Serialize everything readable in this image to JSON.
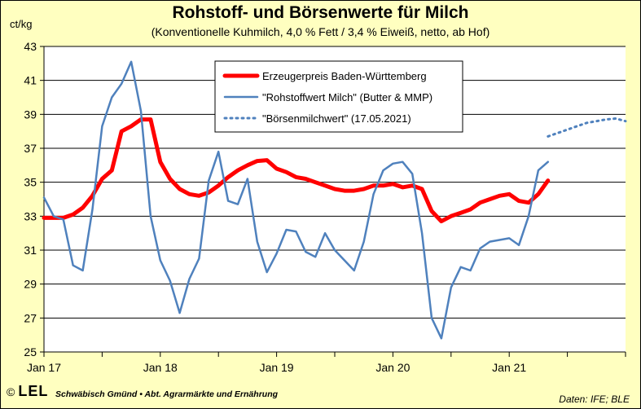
{
  "chart_data": {
    "type": "line",
    "title": "Rohstoff- und Börsenwerte für Milch",
    "subtitle": "(Konventionelle Kuhmilch, 4,0 % Fett / 3,4 % Eiweiß, netto, ab Hof)",
    "ylabel": "ct/kg",
    "ylim": [
      25,
      43
    ],
    "yticks": [
      "25",
      "27",
      "29",
      "31",
      "33",
      "35",
      "37",
      "39",
      "41",
      "43"
    ],
    "xlim": [
      0,
      60
    ],
    "xticks": [
      {
        "label": "Jan 17",
        "x": 0
      },
      {
        "label": "Jan 18",
        "x": 12
      },
      {
        "label": "Jan 19",
        "x": 24
      },
      {
        "label": "Jan 20",
        "x": 36
      },
      {
        "label": "Jan 21",
        "x": 48
      }
    ],
    "legend_position": "top-center",
    "series": [
      {
        "name": "Erzeugerpreis Baden-Württemberg",
        "color": "#ff0000",
        "style": "thick",
        "x": [
          0,
          1,
          2,
          3,
          4,
          5,
          6,
          7,
          8,
          9,
          10,
          11,
          12,
          13,
          14,
          15,
          16,
          17,
          18,
          19,
          20,
          21,
          22,
          23,
          24,
          25,
          26,
          27,
          28,
          29,
          30,
          31,
          32,
          33,
          34,
          35,
          36,
          37,
          38,
          39,
          40,
          41,
          42,
          43,
          44,
          45,
          46,
          47,
          48,
          49,
          50,
          51,
          52
        ],
        "values": [
          32.9,
          32.9,
          32.9,
          33.1,
          33.5,
          34.2,
          35.2,
          35.7,
          38.0,
          38.3,
          38.7,
          38.7,
          36.2,
          35.2,
          34.6,
          34.3,
          34.2,
          34.4,
          34.8,
          35.3,
          35.7,
          36.0,
          36.25,
          36.3,
          35.8,
          35.6,
          35.3,
          35.2,
          35.0,
          34.8,
          34.6,
          34.5,
          34.5,
          34.6,
          34.8,
          34.8,
          34.9,
          34.7,
          34.8,
          34.6,
          33.3,
          32.7,
          33.0,
          33.2,
          33.4,
          33.8,
          34.0,
          34.2,
          34.3,
          33.9,
          33.8,
          34.3,
          35.1
        ]
      },
      {
        "name": "\"Rohstoffwert Milch\" (Butter & MMP)",
        "color": "#4f81bd",
        "style": "solid",
        "x": [
          0,
          1,
          2,
          3,
          4,
          5,
          6,
          7,
          8,
          9,
          10,
          11,
          12,
          13,
          14,
          15,
          16,
          17,
          18,
          19,
          20,
          21,
          22,
          23,
          24,
          25,
          26,
          27,
          28,
          29,
          30,
          31,
          32,
          33,
          34,
          35,
          36,
          37,
          38,
          39,
          40,
          41,
          42,
          43,
          44,
          45,
          46,
          47,
          48,
          49,
          50,
          51,
          52
        ],
        "values": [
          34.1,
          33.0,
          32.8,
          30.1,
          29.8,
          33.4,
          38.3,
          40.0,
          40.8,
          42.1,
          39.2,
          33.0,
          30.4,
          29.2,
          27.3,
          29.3,
          30.5,
          35.1,
          36.8,
          33.9,
          33.7,
          35.2,
          31.5,
          29.7,
          30.8,
          32.2,
          32.1,
          30.9,
          30.6,
          32.0,
          31.0,
          30.4,
          29.8,
          31.5,
          34.3,
          35.7,
          36.1,
          36.2,
          35.5,
          32.0,
          27.0,
          25.8,
          28.8,
          30.0,
          29.8,
          31.1,
          31.5,
          31.6,
          31.7,
          31.3,
          33.0,
          35.7,
          36.2
        ]
      },
      {
        "name": "\"Börsenmilchwert\" (17.05.2021)",
        "color": "#4f81bd",
        "style": "dotted",
        "x": [
          52,
          53,
          54,
          55,
          56,
          57,
          58,
          59,
          60
        ],
        "values": [
          37.7,
          37.9,
          38.1,
          38.3,
          38.5,
          38.6,
          38.7,
          38.75,
          38.6
        ]
      }
    ]
  },
  "footer": {
    "copyright": "©",
    "logo_text": "LEL",
    "org": "Schwäbisch Gmünd • Abt. Agrarmärkte und Ernährung",
    "source": "Daten: IFE; BLE"
  }
}
